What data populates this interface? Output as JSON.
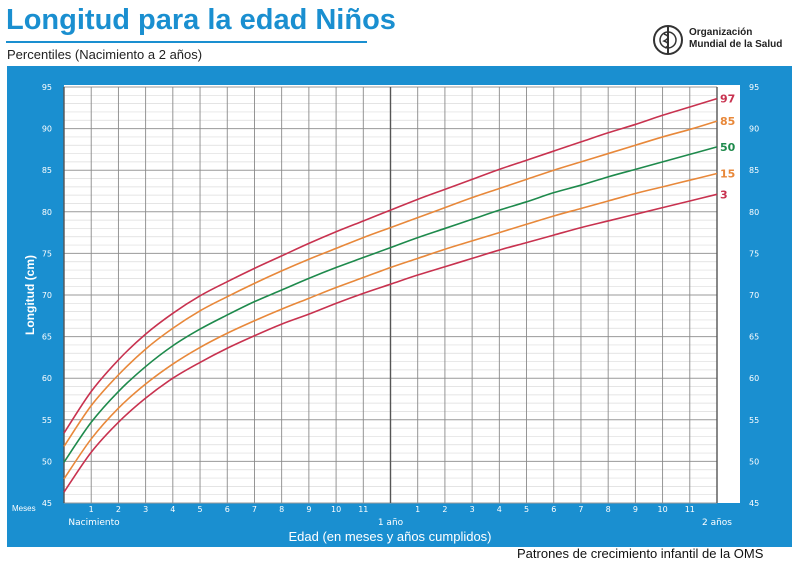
{
  "header": {
    "title": "Longitud para la edad Niños",
    "subtitle": "Percentiles (Nacimiento a 2 años)",
    "logo_text_line1": "Organización",
    "logo_text_line2": "Mundial de la Salud"
  },
  "footer": "Patrones de crecimiento infantil de la OMS",
  "colors": {
    "panel": "#1a8fd0",
    "p3": "#c8324f",
    "p15": "#e8883a",
    "p50": "#1e8a4c",
    "p85": "#e8883a",
    "p97": "#c8324f"
  },
  "chart_data": {
    "type": "line",
    "title": "Longitud para la edad Niños",
    "subtitle": "Percentiles (Nacimiento a 2 años)",
    "xlabel": "Edad (en meses y años cumplidos)",
    "ylabel": "Longitud (cm)",
    "x_prefix_label": "Meses",
    "xlim": [
      0,
      24
    ],
    "ylim": [
      45,
      95
    ],
    "grid": true,
    "y_ticks": [
      45,
      50,
      55,
      60,
      65,
      70,
      75,
      80,
      85,
      90,
      95
    ],
    "x_tick_labels": [
      {
        "x": 0,
        "label": "Nacimiento"
      },
      {
        "x": 1,
        "label": "1"
      },
      {
        "x": 2,
        "label": "2"
      },
      {
        "x": 3,
        "label": "3"
      },
      {
        "x": 4,
        "label": "4"
      },
      {
        "x": 5,
        "label": "5"
      },
      {
        "x": 6,
        "label": "6"
      },
      {
        "x": 7,
        "label": "7"
      },
      {
        "x": 8,
        "label": "8"
      },
      {
        "x": 9,
        "label": "9"
      },
      {
        "x": 10,
        "label": "10"
      },
      {
        "x": 11,
        "label": "11"
      },
      {
        "x": 12,
        "label": "1 año"
      },
      {
        "x": 13,
        "label": "1"
      },
      {
        "x": 14,
        "label": "2"
      },
      {
        "x": 15,
        "label": "3"
      },
      {
        "x": 16,
        "label": "4"
      },
      {
        "x": 17,
        "label": "5"
      },
      {
        "x": 18,
        "label": "6"
      },
      {
        "x": 19,
        "label": "7"
      },
      {
        "x": 20,
        "label": "8"
      },
      {
        "x": 21,
        "label": "9"
      },
      {
        "x": 22,
        "label": "10"
      },
      {
        "x": 23,
        "label": "11"
      },
      {
        "x": 24,
        "label": "2 años"
      }
    ],
    "x": [
      0,
      1,
      2,
      3,
      4,
      5,
      6,
      7,
      8,
      9,
      10,
      11,
      12,
      13,
      14,
      15,
      16,
      17,
      18,
      19,
      20,
      21,
      22,
      23,
      24
    ],
    "series": [
      {
        "name": "97",
        "color": "#c8324f",
        "values": [
          53.4,
          58.4,
          62.2,
          65.3,
          67.8,
          69.9,
          71.6,
          73.2,
          74.7,
          76.2,
          77.6,
          78.9,
          80.2,
          81.5,
          82.7,
          83.9,
          85.1,
          86.2,
          87.3,
          88.4,
          89.5,
          90.5,
          91.6,
          92.6,
          93.6
        ]
      },
      {
        "name": "85",
        "color": "#e8883a",
        "values": [
          51.8,
          56.7,
          60.4,
          63.5,
          66.0,
          68.1,
          69.8,
          71.4,
          72.9,
          74.3,
          75.6,
          76.9,
          78.1,
          79.3,
          80.5,
          81.7,
          82.8,
          83.9,
          85.0,
          86.0,
          87.0,
          88.0,
          89.0,
          89.9,
          90.9
        ]
      },
      {
        "name": "50",
        "color": "#1e8a4c",
        "values": [
          49.9,
          54.7,
          58.4,
          61.4,
          63.9,
          65.9,
          67.6,
          69.2,
          70.6,
          72.0,
          73.3,
          74.5,
          75.7,
          76.9,
          78.0,
          79.1,
          80.2,
          81.2,
          82.3,
          83.2,
          84.2,
          85.1,
          86.0,
          86.9,
          87.8
        ]
      },
      {
        "name": "15",
        "color": "#e8883a",
        "values": [
          47.9,
          52.7,
          56.4,
          59.3,
          61.7,
          63.7,
          65.4,
          66.9,
          68.3,
          69.6,
          70.9,
          72.1,
          73.3,
          74.4,
          75.5,
          76.5,
          77.5,
          78.5,
          79.5,
          80.4,
          81.3,
          82.2,
          83.0,
          83.8,
          84.6
        ]
      },
      {
        "name": "3",
        "color": "#c8324f",
        "values": [
          46.3,
          51.1,
          54.7,
          57.6,
          60.0,
          61.9,
          63.6,
          65.1,
          66.5,
          67.7,
          69.0,
          70.2,
          71.3,
          72.4,
          73.4,
          74.4,
          75.4,
          76.3,
          77.2,
          78.1,
          78.9,
          79.7,
          80.5,
          81.3,
          82.1
        ]
      }
    ]
  }
}
